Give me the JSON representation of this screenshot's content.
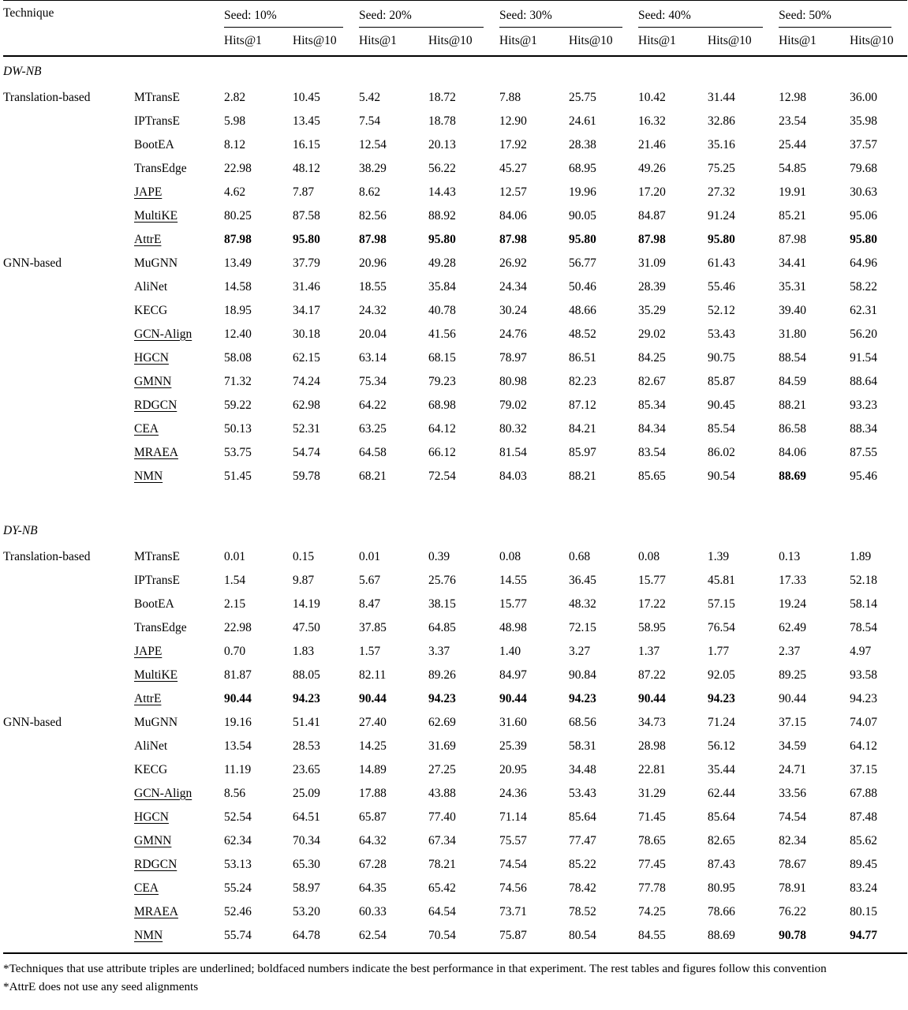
{
  "table": {
    "col1_header": "Technique",
    "seed_headers": [
      "Seed: 10%",
      "Seed: 20%",
      "Seed: 30%",
      "Seed: 40%",
      "Seed: 50%"
    ],
    "metric_headers": [
      "Hits@1",
      "Hits@10"
    ],
    "sections": [
      {
        "name": "DW-NB",
        "groups": [
          {
            "label": "Translation-based",
            "rows": [
              {
                "method": "MTransE",
                "underlined": false,
                "values": [
                  "2.82",
                  "10.45",
                  "5.42",
                  "18.72",
                  "7.88",
                  "25.75",
                  "10.42",
                  "31.44",
                  "12.98",
                  "36.00"
                ],
                "bold": []
              },
              {
                "method": "IPTransE",
                "underlined": false,
                "values": [
                  "5.98",
                  "13.45",
                  "7.54",
                  "18.78",
                  "12.90",
                  "24.61",
                  "16.32",
                  "32.86",
                  "23.54",
                  "35.98"
                ],
                "bold": []
              },
              {
                "method": "BootEA",
                "underlined": false,
                "values": [
                  "8.12",
                  "16.15",
                  "12.54",
                  "20.13",
                  "17.92",
                  "28.38",
                  "21.46",
                  "35.16",
                  "25.44",
                  "37.57"
                ],
                "bold": []
              },
              {
                "method": "TransEdge",
                "underlined": false,
                "values": [
                  "22.98",
                  "48.12",
                  "38.29",
                  "56.22",
                  "45.27",
                  "68.95",
                  "49.26",
                  "75.25",
                  "54.85",
                  "79.68"
                ],
                "bold": []
              },
              {
                "method": "JAPE",
                "underlined": true,
                "values": [
                  "4.62",
                  "7.87",
                  "8.62",
                  "14.43",
                  "12.57",
                  "19.96",
                  "17.20",
                  "27.32",
                  "19.91",
                  "30.63"
                ],
                "bold": []
              },
              {
                "method": "MultiKE",
                "underlined": true,
                "values": [
                  "80.25",
                  "87.58",
                  "82.56",
                  "88.92",
                  "84.06",
                  "90.05",
                  "84.87",
                  "91.24",
                  "85.21",
                  "95.06"
                ],
                "bold": []
              },
              {
                "method": "AttrE",
                "underlined": true,
                "values": [
                  "87.98",
                  "95.80",
                  "87.98",
                  "95.80",
                  "87.98",
                  "95.80",
                  "87.98",
                  "95.80",
                  "87.98",
                  "95.80"
                ],
                "bold": [
                  0,
                  1,
                  2,
                  3,
                  4,
                  5,
                  6,
                  7,
                  9
                ]
              }
            ]
          },
          {
            "label": "GNN-based",
            "rows": [
              {
                "method": "MuGNN",
                "underlined": false,
                "values": [
                  "13.49",
                  "37.79",
                  "20.96",
                  "49.28",
                  "26.92",
                  "56.77",
                  "31.09",
                  "61.43",
                  "34.41",
                  "64.96"
                ],
                "bold": []
              },
              {
                "method": "AliNet",
                "underlined": false,
                "values": [
                  "14.58",
                  "31.46",
                  "18.55",
                  "35.84",
                  "24.34",
                  "50.46",
                  "28.39",
                  "55.46",
                  "35.31",
                  "58.22"
                ],
                "bold": []
              },
              {
                "method": "KECG",
                "underlined": false,
                "values": [
                  "18.95",
                  "34.17",
                  "24.32",
                  "40.78",
                  "30.24",
                  "48.66",
                  "35.29",
                  "52.12",
                  "39.40",
                  "62.31"
                ],
                "bold": []
              },
              {
                "method": "GCN-Align",
                "underlined": true,
                "values": [
                  "12.40",
                  "30.18",
                  "20.04",
                  "41.56",
                  "24.76",
                  "48.52",
                  "29.02",
                  "53.43",
                  "31.80",
                  "56.20"
                ],
                "bold": []
              },
              {
                "method": "HGCN",
                "underlined": true,
                "values": [
                  "58.08",
                  "62.15",
                  "63.14",
                  "68.15",
                  "78.97",
                  "86.51",
                  "84.25",
                  "90.75",
                  "88.54",
                  "91.54"
                ],
                "bold": []
              },
              {
                "method": "GMNN",
                "underlined": true,
                "values": [
                  "71.32",
                  "74.24",
                  "75.34",
                  "79.23",
                  "80.98",
                  "82.23",
                  "82.67",
                  "85.87",
                  "84.59",
                  "88.64"
                ],
                "bold": []
              },
              {
                "method": "RDGCN",
                "underlined": true,
                "values": [
                  "59.22",
                  "62.98",
                  "64.22",
                  "68.98",
                  "79.02",
                  "87.12",
                  "85.34",
                  "90.45",
                  "88.21",
                  "93.23"
                ],
                "bold": []
              },
              {
                "method": "CEA",
                "underlined": true,
                "values": [
                  "50.13",
                  "52.31",
                  "63.25",
                  "64.12",
                  "80.32",
                  "84.21",
                  "84.34",
                  "85.54",
                  "86.58",
                  "88.34"
                ],
                "bold": []
              },
              {
                "method": "MRAEA",
                "underlined": true,
                "values": [
                  "53.75",
                  "54.74",
                  "64.58",
                  "66.12",
                  "81.54",
                  "85.97",
                  "83.54",
                  "86.02",
                  "84.06",
                  "87.55"
                ],
                "bold": []
              },
              {
                "method": "NMN",
                "underlined": true,
                "values": [
                  "51.45",
                  "59.78",
                  "68.21",
                  "72.54",
                  "84.03",
                  "88.21",
                  "85.65",
                  "90.54",
                  "88.69",
                  "95.46"
                ],
                "bold": [
                  8
                ]
              }
            ]
          }
        ]
      },
      {
        "name": "DY-NB",
        "groups": [
          {
            "label": "Translation-based",
            "rows": [
              {
                "method": "MTransE",
                "underlined": false,
                "values": [
                  "0.01",
                  "0.15",
                  "0.01",
                  "0.39",
                  "0.08",
                  "0.68",
                  "0.08",
                  "1.39",
                  "0.13",
                  "1.89"
                ],
                "bold": []
              },
              {
                "method": "IPTransE",
                "underlined": false,
                "values": [
                  "1.54",
                  "9.87",
                  "5.67",
                  "25.76",
                  "14.55",
                  "36.45",
                  "15.77",
                  "45.81",
                  "17.33",
                  "52.18"
                ],
                "bold": []
              },
              {
                "method": "BootEA",
                "underlined": false,
                "values": [
                  "2.15",
                  "14.19",
                  "8.47",
                  "38.15",
                  "15.77",
                  "48.32",
                  "17.22",
                  "57.15",
                  "19.24",
                  "58.14"
                ],
                "bold": []
              },
              {
                "method": "TransEdge",
                "underlined": false,
                "values": [
                  "22.98",
                  "47.50",
                  "37.85",
                  "64.85",
                  "48.98",
                  "72.15",
                  "58.95",
                  "76.54",
                  "62.49",
                  "78.54"
                ],
                "bold": []
              },
              {
                "method": "JAPE",
                "underlined": true,
                "values": [
                  "0.70",
                  "1.83",
                  "1.57",
                  "3.37",
                  "1.40",
                  "3.27",
                  "1.37",
                  "1.77",
                  "2.37",
                  "4.97"
                ],
                "bold": []
              },
              {
                "method": "MultiKE",
                "underlined": true,
                "values": [
                  "81.87",
                  "88.05",
                  "82.11",
                  "89.26",
                  "84.97",
                  "90.84",
                  "87.22",
                  "92.05",
                  "89.25",
                  "93.58"
                ],
                "bold": []
              },
              {
                "method": "AttrE",
                "underlined": true,
                "values": [
                  "90.44",
                  "94.23",
                  "90.44",
                  "94.23",
                  "90.44",
                  "94.23",
                  "90.44",
                  "94.23",
                  "90.44",
                  "94.23"
                ],
                "bold": [
                  0,
                  1,
                  2,
                  3,
                  4,
                  5,
                  6,
                  7
                ]
              }
            ]
          },
          {
            "label": "GNN-based",
            "rows": [
              {
                "method": "MuGNN",
                "underlined": false,
                "values": [
                  "19.16",
                  "51.41",
                  "27.40",
                  "62.69",
                  "31.60",
                  "68.56",
                  "34.73",
                  "71.24",
                  "37.15",
                  "74.07"
                ],
                "bold": []
              },
              {
                "method": "AliNet",
                "underlined": false,
                "values": [
                  "13.54",
                  "28.53",
                  "14.25",
                  "31.69",
                  "25.39",
                  "58.31",
                  "28.98",
                  "56.12",
                  "34.59",
                  "64.12"
                ],
                "bold": []
              },
              {
                "method": "KECG",
                "underlined": false,
                "values": [
                  "11.19",
                  "23.65",
                  "14.89",
                  "27.25",
                  "20.95",
                  "34.48",
                  "22.81",
                  "35.44",
                  "24.71",
                  "37.15"
                ],
                "bold": []
              },
              {
                "method": "GCN-Align",
                "underlined": true,
                "values": [
                  "8.56",
                  "25.09",
                  "17.88",
                  "43.88",
                  "24.36",
                  "53.43",
                  "31.29",
                  "62.44",
                  "33.56",
                  "67.88"
                ],
                "bold": []
              },
              {
                "method": "HGCN",
                "underlined": true,
                "values": [
                  "52.54",
                  "64.51",
                  "65.87",
                  "77.40",
                  "71.14",
                  "85.64",
                  "71.45",
                  "85.64",
                  "74.54",
                  "87.48"
                ],
                "bold": []
              },
              {
                "method": "GMNN",
                "underlined": true,
                "values": [
                  "62.34",
                  "70.34",
                  "64.32",
                  "67.34",
                  "75.57",
                  "77.47",
                  "78.65",
                  "82.65",
                  "82.34",
                  "85.62"
                ],
                "bold": []
              },
              {
                "method": "RDGCN",
                "underlined": true,
                "values": [
                  "53.13",
                  "65.30",
                  "67.28",
                  "78.21",
                  "74.54",
                  "85.22",
                  "77.45",
                  "87.43",
                  "78.67",
                  "89.45"
                ],
                "bold": []
              },
              {
                "method": "CEA",
                "underlined": true,
                "values": [
                  "55.24",
                  "58.97",
                  "64.35",
                  "65.42",
                  "74.56",
                  "78.42",
                  "77.78",
                  "80.95",
                  "78.91",
                  "83.24"
                ],
                "bold": []
              },
              {
                "method": "MRAEA",
                "underlined": true,
                "values": [
                  "52.46",
                  "53.20",
                  "60.33",
                  "64.54",
                  "73.71",
                  "78.52",
                  "74.25",
                  "78.66",
                  "76.22",
                  "80.15"
                ],
                "bold": []
              },
              {
                "method": "NMN",
                "underlined": true,
                "values": [
                  "55.74",
                  "64.78",
                  "62.54",
                  "70.54",
                  "75.87",
                  "80.54",
                  "84.55",
                  "88.69",
                  "90.78",
                  "94.77"
                ],
                "bold": [
                  8,
                  9
                ]
              }
            ]
          }
        ]
      }
    ],
    "footnotes": [
      "*Techniques that use attribute triples are underlined; boldfaced numbers indicate the best performance in that experiment. The rest tables and figures follow this convention",
      "*AttrE does not use any seed alignments"
    ]
  }
}
